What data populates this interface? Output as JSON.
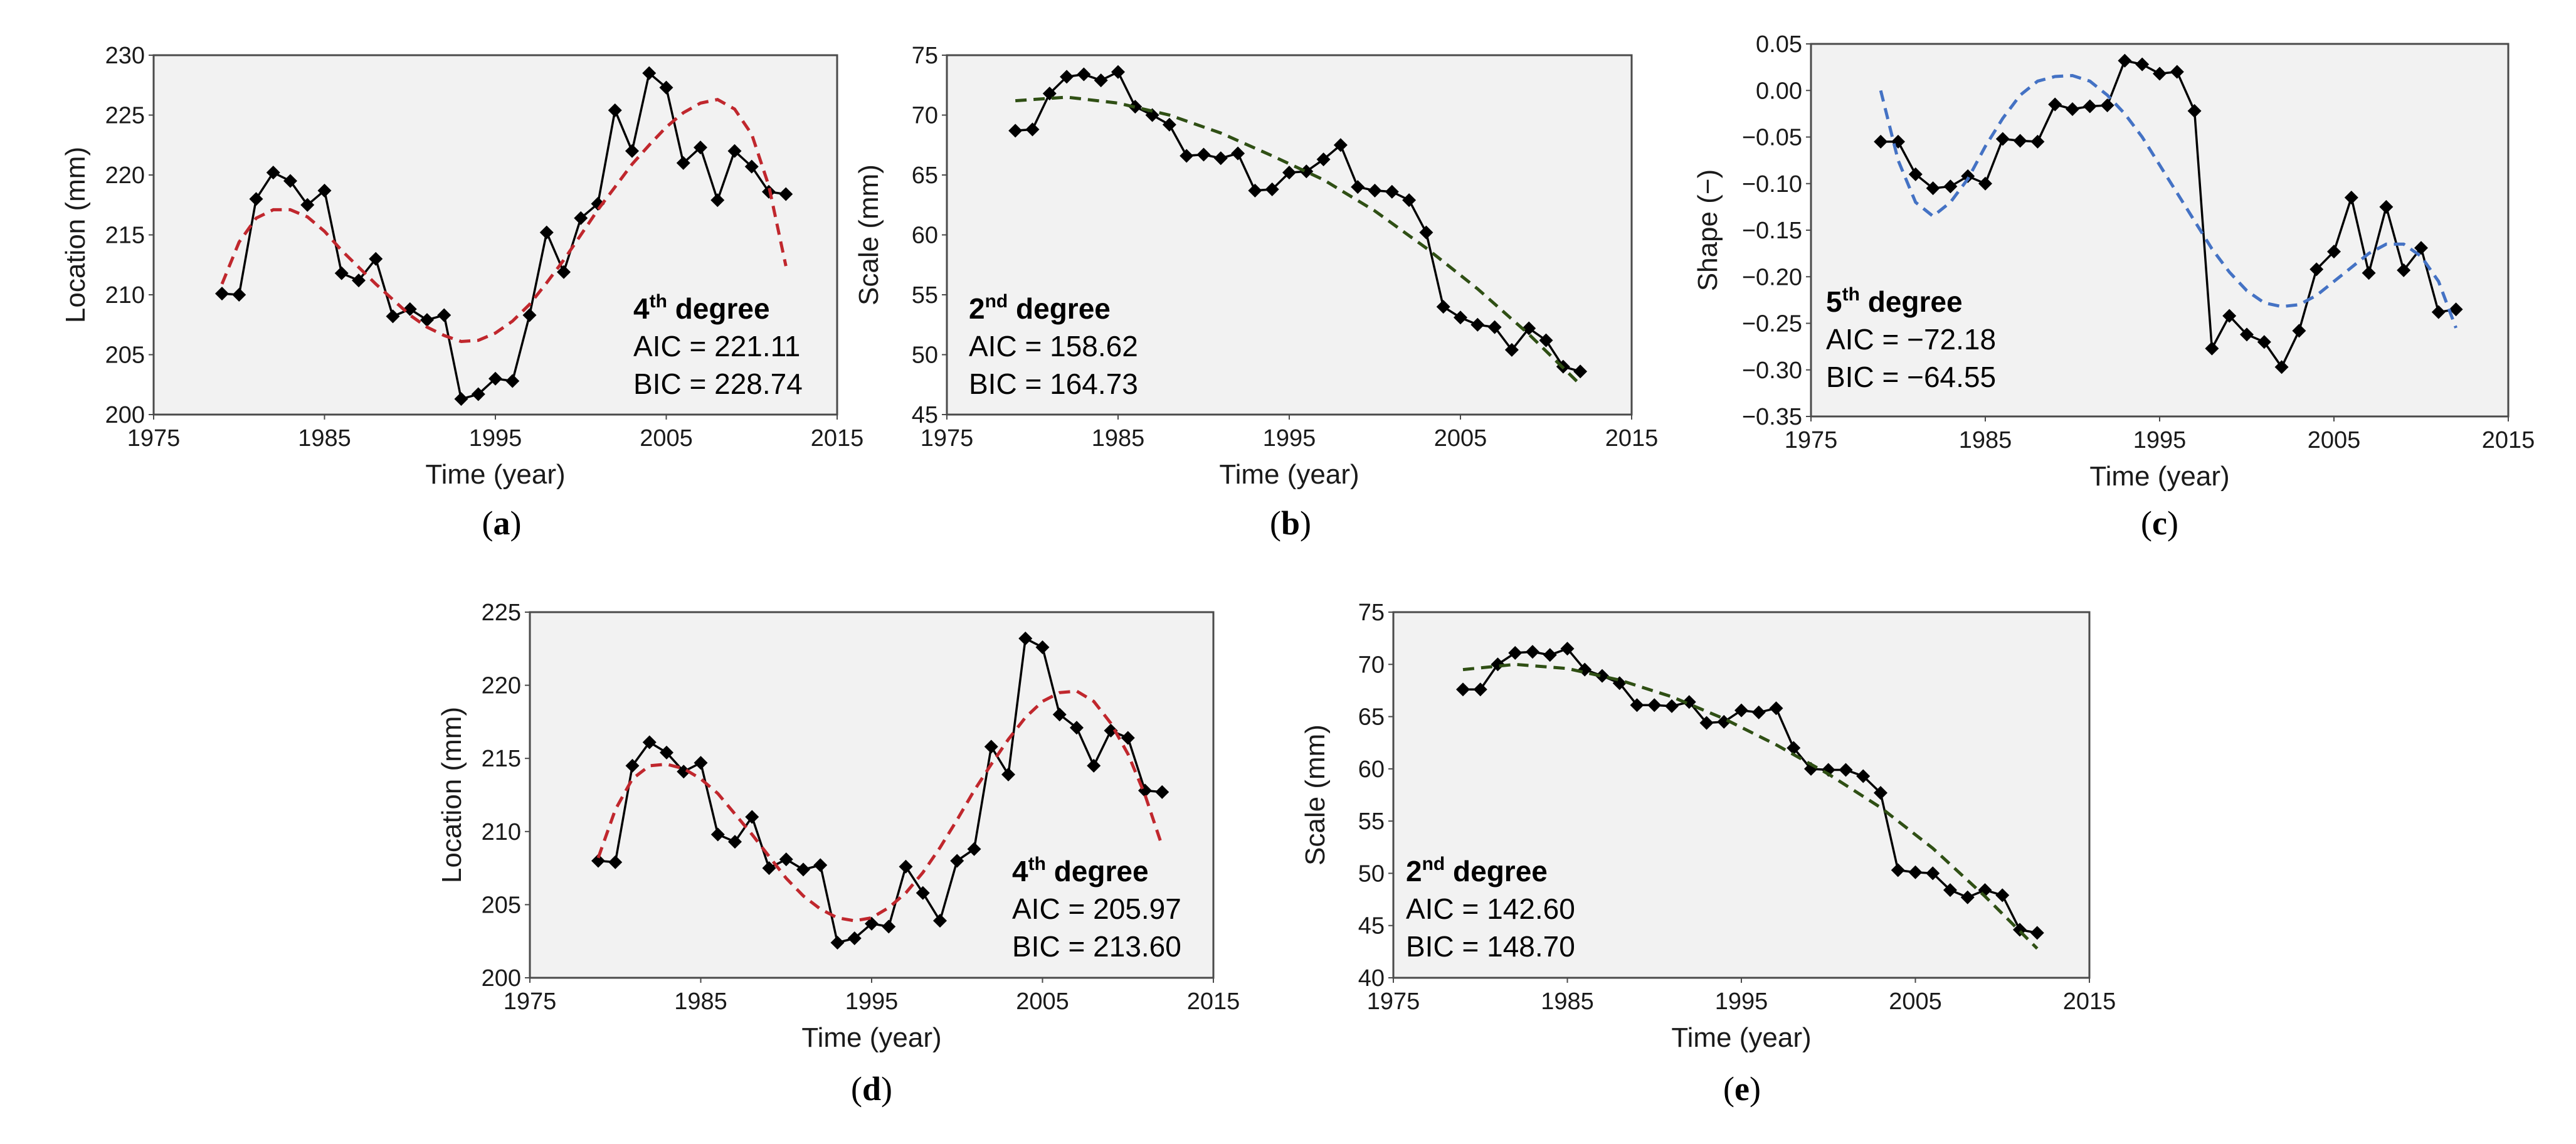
{
  "chart_data": [
    {
      "id": "a",
      "type": "line",
      "panel_label": "a",
      "xlabel": "Time (year)",
      "ylabel": "Location (mm)",
      "xlim": [
        1975,
        2015
      ],
      "ylim": [
        200,
        230
      ],
      "xticks": [
        1975,
        1985,
        1995,
        2005,
        2015
      ],
      "yticks": [
        200,
        205,
        210,
        215,
        220,
        225,
        230
      ],
      "ytick_decimals": 0,
      "trend_color": "#c0272d",
      "annotation": {
        "degree_num": "4",
        "degree_sup": "th",
        "degree_word": " degree",
        "aic": "AIC = 221.11",
        "bic": "BIC = 228.74"
      },
      "series": [
        {
          "name": "observed",
          "style": "marker-line",
          "color": "#000000",
          "x": [
            1979,
            1980,
            1981,
            1982,
            1983,
            1984,
            1985,
            1986,
            1987,
            1988,
            1989,
            1990,
            1991,
            1992,
            1993,
            1994,
            1995,
            1996,
            1997,
            1998,
            1999,
            2000,
            2001,
            2002,
            2003,
            2004,
            2005,
            2006,
            2007,
            2008,
            2009,
            2010,
            2011,
            2012
          ],
          "y": [
            210.1,
            210.0,
            218.0,
            220.2,
            219.5,
            217.5,
            218.7,
            211.8,
            211.2,
            213.0,
            208.2,
            208.8,
            207.9,
            208.3,
            201.3,
            201.7,
            203.0,
            202.8,
            208.3,
            215.2,
            211.9,
            216.4,
            217.6,
            225.4,
            222.0,
            228.5,
            227.3,
            221.0,
            222.3,
            217.9,
            222.0,
            220.7,
            218.6,
            218.4
          ]
        },
        {
          "name": "trend",
          "style": "dashed",
          "color": "#c0272d",
          "x": [
            1979,
            1980,
            1981,
            1982,
            1983,
            1984,
            1985,
            1986,
            1987,
            1988,
            1989,
            1990,
            1991,
            1992,
            1993,
            1994,
            1995,
            1996,
            1997,
            1998,
            1999,
            2000,
            2001,
            2002,
            2003,
            2004,
            2005,
            2006,
            2007,
            2008,
            2009,
            2010,
            2011,
            2012
          ],
          "y": [
            210.9,
            214.4,
            216.4,
            217.1,
            217.1,
            216.5,
            215.3,
            213.7,
            212.3,
            210.9,
            209.6,
            208.3,
            207.3,
            206.6,
            206.1,
            206.2,
            206.8,
            207.8,
            209.2,
            211.0,
            212.9,
            215.0,
            217.1,
            219.0,
            220.9,
            222.5,
            224.0,
            225.2,
            226.0,
            226.3,
            225.5,
            223.4,
            219.1,
            212.4
          ]
        }
      ]
    },
    {
      "id": "b",
      "type": "line",
      "panel_label": "b",
      "xlabel": "Time (year)",
      "ylabel": "Scale (mm)",
      "xlim": [
        1975,
        2015
      ],
      "ylim": [
        45,
        75
      ],
      "xticks": [
        1975,
        1985,
        1995,
        2005,
        2015
      ],
      "yticks": [
        45,
        50,
        55,
        60,
        65,
        70,
        75
      ],
      "ytick_decimals": 0,
      "trend_color": "#2f4f14",
      "annotation": {
        "degree_num": "2",
        "degree_sup": "nd",
        "degree_word": " degree",
        "aic": "AIC = 158.62",
        "bic": "BIC = 164.73"
      },
      "series": [
        {
          "name": "observed",
          "style": "marker-line",
          "color": "#000000",
          "x": [
            1979,
            1980,
            1981,
            1982,
            1983,
            1984,
            1985,
            1986,
            1987,
            1988,
            1989,
            1990,
            1991,
            1992,
            1993,
            1994,
            1995,
            1996,
            1997,
            1998,
            1999,
            2000,
            2001,
            2002,
            2003,
            2004,
            2005,
            2006,
            2007,
            2008,
            2009,
            2010,
            2011,
            2012
          ],
          "y": [
            68.7,
            68.8,
            71.8,
            73.2,
            73.4,
            72.9,
            73.6,
            70.7,
            70.0,
            69.2,
            66.6,
            66.7,
            66.4,
            66.8,
            63.7,
            63.8,
            65.2,
            65.3,
            66.3,
            67.5,
            64.0,
            63.7,
            63.6,
            62.9,
            60.2,
            54.0,
            53.1,
            52.5,
            52.3,
            50.4,
            52.2,
            51.2,
            49.0,
            48.6
          ]
        },
        {
          "name": "trend",
          "style": "dashed",
          "color": "#2f4f14",
          "x": [
            1979,
            1982,
            1985,
            1988,
            1991,
            1994,
            1997,
            2000,
            2003,
            2006,
            2009,
            2012
          ],
          "y": [
            71.2,
            71.5,
            71.0,
            70.0,
            68.5,
            66.6,
            64.6,
            62.0,
            58.9,
            55.5,
            51.7,
            47.5
          ]
        }
      ]
    },
    {
      "id": "c",
      "type": "line",
      "panel_label": "c",
      "xlabel": "Time (year)",
      "ylabel": "Shape (−)",
      "xlim": [
        1975,
        2015
      ],
      "ylim": [
        -0.35,
        0.05
      ],
      "xticks": [
        1975,
        1985,
        1995,
        2005,
        2015
      ],
      "yticks": [
        -0.35,
        -0.3,
        -0.25,
        -0.2,
        -0.15,
        -0.1,
        -0.05,
        0.0,
        0.05
      ],
      "ytick_decimals": 2,
      "trend_color": "#4472c4",
      "annotation": {
        "degree_num": "5",
        "degree_sup": "th",
        "degree_word": " degree",
        "aic": "AIC = −72.18",
        "bic": "BIC = −64.55"
      },
      "series": [
        {
          "name": "observed",
          "style": "marker-line",
          "color": "#000000",
          "x": [
            1979,
            1980,
            1981,
            1982,
            1983,
            1984,
            1985,
            1986,
            1987,
            1988,
            1989,
            1990,
            1991,
            1992,
            1993,
            1994,
            1995,
            1996,
            1997,
            1998,
            1999,
            2000,
            2001,
            2002,
            2003,
            2004,
            2005,
            2006,
            2007,
            2008,
            2009,
            2010,
            2011,
            2012
          ],
          "y": [
            -0.055,
            -0.055,
            -0.09,
            -0.105,
            -0.103,
            -0.092,
            -0.1,
            -0.052,
            -0.054,
            -0.055,
            -0.015,
            -0.02,
            -0.017,
            -0.016,
            0.032,
            0.028,
            0.018,
            0.02,
            -0.022,
            -0.277,
            -0.242,
            -0.262,
            -0.27,
            -0.297,
            -0.258,
            -0.192,
            -0.173,
            -0.115,
            -0.196,
            -0.125,
            -0.193,
            -0.169,
            -0.238,
            -0.235
          ]
        },
        {
          "name": "trend",
          "style": "dashed",
          "color": "#4472c4",
          "x": [
            1979,
            1980,
            1981,
            1982,
            1983,
            1984,
            1985,
            1986,
            1987,
            1988,
            1989,
            1990,
            1991,
            1992,
            1993,
            1994,
            1995,
            1996,
            1997,
            1998,
            1999,
            2000,
            2001,
            2002,
            2003,
            2004,
            2005,
            2006,
            2007,
            2008,
            2009,
            2010,
            2011,
            2012
          ],
          "y": [
            0.0,
            -0.075,
            -0.12,
            -0.135,
            -0.12,
            -0.095,
            -0.06,
            -0.03,
            -0.005,
            0.01,
            0.015,
            0.016,
            0.01,
            -0.005,
            -0.025,
            -0.05,
            -0.08,
            -0.11,
            -0.14,
            -0.17,
            -0.195,
            -0.215,
            -0.228,
            -0.232,
            -0.23,
            -0.22,
            -0.205,
            -0.19,
            -0.175,
            -0.165,
            -0.165,
            -0.178,
            -0.205,
            -0.255
          ]
        }
      ]
    },
    {
      "id": "d",
      "type": "line",
      "panel_label": "d",
      "xlabel": "Time (year)",
      "ylabel": "Location (mm)",
      "xlim": [
        1975,
        2015
      ],
      "ylim": [
        200,
        225
      ],
      "xticks": [
        1975,
        1985,
        1995,
        2005,
        2015
      ],
      "yticks": [
        200,
        205,
        210,
        215,
        220,
        225
      ],
      "ytick_decimals": 0,
      "trend_color": "#c0272d",
      "annotation": {
        "degree_num": "4",
        "degree_sup": "th",
        "degree_word": " degree",
        "aic": "AIC = 205.97",
        "bic": "BIC = 213.60"
      },
      "series": [
        {
          "name": "observed",
          "style": "marker-line",
          "color": "#000000",
          "x": [
            1979,
            1980,
            1981,
            1982,
            1983,
            1984,
            1985,
            1986,
            1987,
            1988,
            1989,
            1990,
            1991,
            1992,
            1993,
            1994,
            1995,
            1996,
            1997,
            1998,
            1999,
            2000,
            2001,
            2002,
            2003,
            2004,
            2005,
            2006,
            2007,
            2008,
            2009,
            2010,
            2011,
            2012
          ],
          "y": [
            208.0,
            207.9,
            214.5,
            216.1,
            215.4,
            214.1,
            214.7,
            209.8,
            209.3,
            211.0,
            207.5,
            208.1,
            207.4,
            207.7,
            202.4,
            202.7,
            203.7,
            203.5,
            207.6,
            205.8,
            203.9,
            208.0,
            208.8,
            215.8,
            213.9,
            223.2,
            222.6,
            218.0,
            217.1,
            214.5,
            216.9,
            216.4,
            212.8,
            212.7
          ]
        },
        {
          "name": "trend",
          "style": "dashed",
          "color": "#c0272d",
          "x": [
            1979,
            1980,
            1981,
            1982,
            1983,
            1984,
            1985,
            1986,
            1987,
            1988,
            1989,
            1990,
            1991,
            1992,
            1993,
            1994,
            1995,
            1996,
            1997,
            1998,
            1999,
            2000,
            2001,
            2002,
            2003,
            2004,
            2005,
            2006,
            2007,
            2008,
            2009,
            2010,
            2011,
            2012
          ],
          "y": [
            208.2,
            211.5,
            213.6,
            214.5,
            214.6,
            214.3,
            213.6,
            212.6,
            211.2,
            209.8,
            208.3,
            206.8,
            205.6,
            204.7,
            204.1,
            203.9,
            204.1,
            204.8,
            205.8,
            207.2,
            208.9,
            210.8,
            212.8,
            214.6,
            216.3,
            217.8,
            218.9,
            219.5,
            219.6,
            218.9,
            217.4,
            215.3,
            212.5,
            209.0
          ]
        }
      ]
    },
    {
      "id": "e",
      "type": "line",
      "panel_label": "e",
      "xlabel": "Time (year)",
      "ylabel": "Scale (mm)",
      "xlim": [
        1975,
        2015
      ],
      "ylim": [
        40,
        75
      ],
      "xticks": [
        1975,
        1985,
        1995,
        2005,
        2015
      ],
      "yticks": [
        40,
        45,
        50,
        55,
        60,
        65,
        70,
        75
      ],
      "ytick_decimals": 0,
      "trend_color": "#2f4f14",
      "annotation": {
        "degree_num": "2",
        "degree_sup": "nd",
        "degree_word": " degree",
        "aic": "AIC = 142.60",
        "bic": "BIC = 148.70"
      },
      "series": [
        {
          "name": "observed",
          "style": "marker-line",
          "color": "#000000",
          "x": [
            1979,
            1980,
            1981,
            1982,
            1983,
            1984,
            1985,
            1986,
            1987,
            1988,
            1989,
            1990,
            1991,
            1992,
            1993,
            1994,
            1995,
            1996,
            1997,
            1998,
            1999,
            2000,
            2001,
            2002,
            2003,
            2004,
            2005,
            2006,
            2007,
            2008,
            2009,
            2010,
            2011,
            2012
          ],
          "y": [
            67.6,
            67.6,
            70.0,
            71.1,
            71.2,
            70.9,
            71.5,
            69.5,
            68.9,
            68.2,
            66.1,
            66.1,
            66.0,
            66.4,
            64.4,
            64.5,
            65.6,
            65.4,
            65.8,
            62.0,
            60.0,
            59.9,
            59.9,
            59.3,
            57.7,
            50.3,
            50.1,
            50.0,
            48.4,
            47.7,
            48.4,
            47.9,
            44.6,
            44.3
          ]
        },
        {
          "name": "trend",
          "style": "dashed",
          "color": "#2f4f14",
          "x": [
            1979,
            1982,
            1985,
            1988,
            1991,
            1994,
            1997,
            2000,
            2003,
            2006,
            2009,
            2012
          ],
          "y": [
            69.5,
            70.0,
            69.6,
            68.5,
            66.9,
            64.8,
            62.3,
            59.5,
            56.3,
            52.4,
            47.8,
            42.8
          ]
        }
      ]
    }
  ]
}
